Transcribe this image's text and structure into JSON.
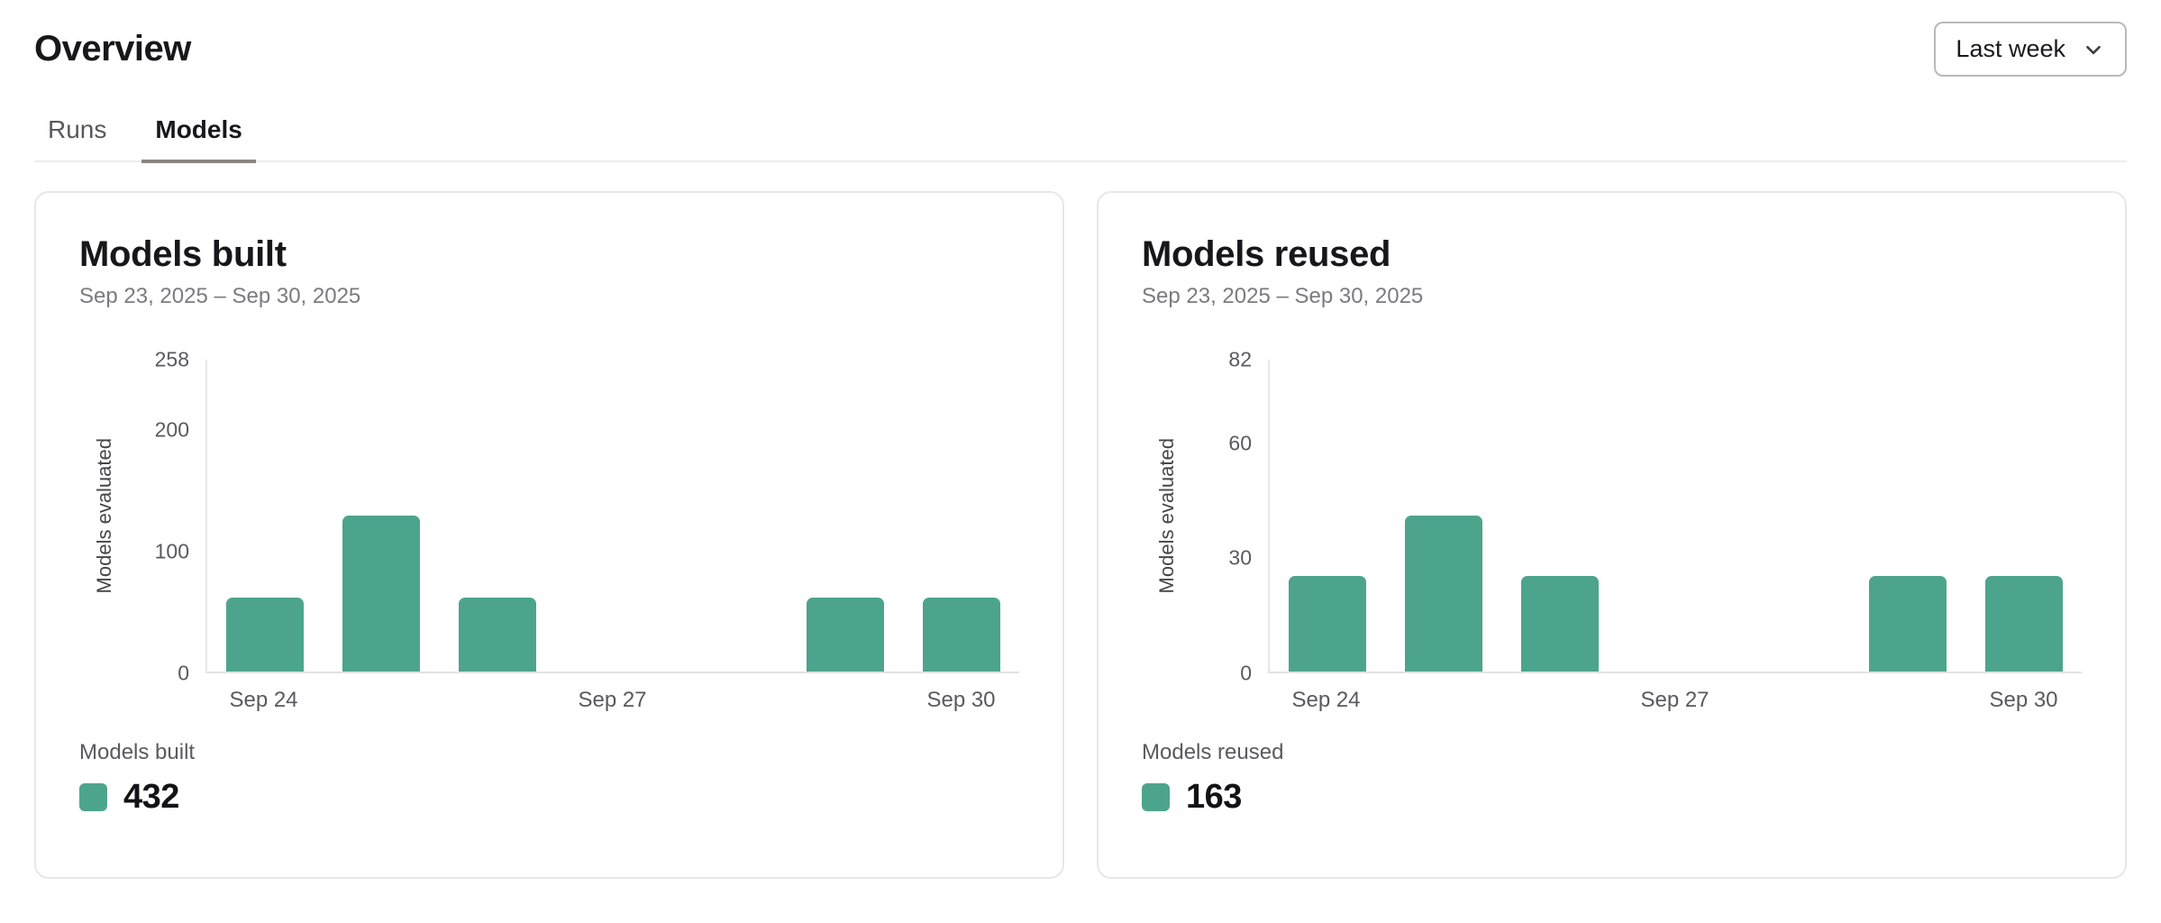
{
  "header": {
    "title": "Overview",
    "range_selector": {
      "value": "Last week",
      "icon": "chevron-down"
    }
  },
  "tabs": [
    {
      "label": "Runs",
      "active": false
    },
    {
      "label": "Models",
      "active": true
    }
  ],
  "colors": {
    "accent_teal": "#4da48c",
    "tab_underline": "#8b8583",
    "axis_line": "#e7e7e9",
    "card_border": "#e7e7e9"
  },
  "chart_data": [
    {
      "type": "bar",
      "title": "Models built",
      "subtitle": "Sep 23, 2025 – Sep 30, 2025",
      "ylabel": "Models evaluated",
      "xlabel": "",
      "ylim": [
        0,
        258
      ],
      "yticks": [
        0,
        100,
        200,
        258
      ],
      "categories": [
        "Sep 24",
        "Sep 25",
        "Sep 26",
        "Sep 27",
        "Sep 28",
        "Sep 29",
        "Sep 30"
      ],
      "values": [
        61,
        129,
        61,
        0,
        0,
        61,
        61
      ],
      "xticks": [
        {
          "index": 0,
          "label": "Sep 24"
        },
        {
          "index": 3,
          "label": "Sep 27"
        },
        {
          "index": 6,
          "label": "Sep 30"
        }
      ],
      "grid": false,
      "bar_color": "#4da48c",
      "legend_position": "bottom-left",
      "legend": {
        "label": "Models built",
        "total": "432"
      }
    },
    {
      "type": "bar",
      "title": "Models reused",
      "subtitle": "Sep 23, 2025 – Sep 30, 2025",
      "ylabel": "Models evaluated",
      "xlabel": "",
      "ylim": [
        0,
        82
      ],
      "yticks": [
        0,
        30,
        60,
        82
      ],
      "categories": [
        "Sep 24",
        "Sep 25",
        "Sep 26",
        "Sep 27",
        "Sep 28",
        "Sep 29",
        "Sep 30"
      ],
      "values": [
        25,
        41,
        25,
        0,
        0,
        25,
        25
      ],
      "xticks": [
        {
          "index": 0,
          "label": "Sep 24"
        },
        {
          "index": 3,
          "label": "Sep 27"
        },
        {
          "index": 6,
          "label": "Sep 30"
        }
      ],
      "grid": false,
      "bar_color": "#4da48c",
      "legend_position": "bottom-left",
      "legend": {
        "label": "Models reused",
        "total": "163"
      }
    }
  ]
}
